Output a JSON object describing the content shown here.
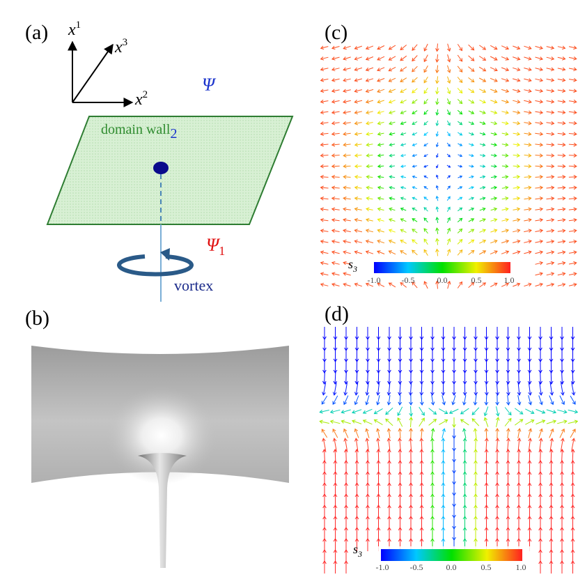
{
  "panels": {
    "a": {
      "label": "(a)",
      "axes": {
        "x1": "x",
        "x1_sup": "1",
        "x2": "x",
        "x2_sup": "2",
        "x3": "x",
        "x3_sup": "3"
      },
      "psi": "Ψ",
      "psi1": "Ψ",
      "psi1_sub": "1",
      "wall_label": "domain wall",
      "wall_sub": "2",
      "vortex_label": "vortex"
    },
    "b": {
      "label": "(b)"
    },
    "c": {
      "label": "(c)",
      "colorbar": {
        "symbol": "s",
        "symbol_sub": "3",
        "ticks": [
          "-1.0",
          "-0.5",
          "0.0",
          "0.5",
          "1.0"
        ]
      }
    },
    "d": {
      "label": "(d)",
      "colorbar": {
        "symbol": "s",
        "symbol_sub": "3",
        "ticks": [
          "-1.0",
          "-0.5",
          "0.0",
          "0.5",
          "1.0"
        ]
      }
    }
  },
  "colors": {
    "wall_fill": "#d7efd3",
    "wall_edge": "#2e7d32",
    "wall_text": "#2e8b2e",
    "psi_blue": "#1a33cc",
    "psi_red": "#e01010",
    "vortex_blue": "#2a5a88",
    "dot": "#0a0a8c"
  }
}
